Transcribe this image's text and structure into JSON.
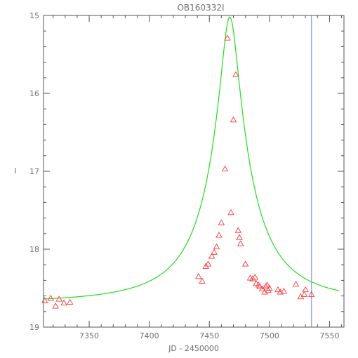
{
  "chart_data": {
    "type": "scatter",
    "title": "OB160332I",
    "xlabel": "JD - 2450000",
    "ylabel": "I",
    "xlim": [
      7312,
      7562
    ],
    "ylim": [
      19,
      15
    ],
    "y_inverted": true,
    "x_ticks": [
      7350,
      7400,
      7450,
      7500,
      7550
    ],
    "y_ticks": [
      15,
      16,
      17,
      18,
      19
    ],
    "colors": {
      "points": "#ff3b3b",
      "model": "#22dd22",
      "marker_line": "#7b7bff",
      "axes": "#555555"
    },
    "series": [
      {
        "kind": "points",
        "marker": "triangle",
        "points": [
          [
            7313,
            18.66
          ],
          [
            7318,
            18.63
          ],
          [
            7322,
            18.73
          ],
          [
            7325,
            18.64
          ],
          [
            7329,
            18.69
          ],
          [
            7334,
            18.68
          ],
          [
            7441,
            18.35
          ],
          [
            7444,
            18.41
          ],
          [
            7447,
            18.22
          ],
          [
            7449,
            18.19
          ],
          [
            7452,
            18.09
          ],
          [
            7454,
            18.04
          ],
          [
            7456,
            17.97
          ],
          [
            7458,
            17.82
          ],
          [
            7460,
            17.66
          ],
          [
            7463,
            16.97
          ],
          [
            7465,
            15.29
          ],
          [
            7468,
            17.53
          ],
          [
            7470,
            16.34
          ],
          [
            7472,
            15.76
          ],
          [
            7474,
            17.76
          ],
          [
            7475,
            17.85
          ],
          [
            7476,
            17.93
          ],
          [
            7480,
            18.19
          ],
          [
            7484,
            18.37
          ],
          [
            7486,
            18.38
          ],
          [
            7488,
            18.36
          ],
          [
            7489,
            18.44
          ],
          [
            7491,
            18.46
          ],
          [
            7492,
            18.48
          ],
          [
            7494,
            18.51
          ],
          [
            7496,
            18.55
          ],
          [
            7497,
            18.48
          ],
          [
            7498,
            18.46
          ],
          [
            7499,
            18.53
          ],
          [
            7500,
            18.5
          ],
          [
            7507,
            18.52
          ],
          [
            7509,
            18.55
          ],
          [
            7512,
            18.54
          ],
          [
            7522,
            18.45
          ],
          [
            7526,
            18.61
          ],
          [
            7529,
            18.58
          ],
          [
            7530,
            18.52
          ],
          [
            7535,
            18.58
          ]
        ]
      },
      {
        "kind": "model",
        "curve": {
          "peak_x": 7467,
          "peak_y": 15.02,
          "baseline_y": 18.7,
          "peak_flux_ratio": 29.6,
          "timescale_days": 24
        }
      }
    ],
    "vertical_line_x": 7535
  }
}
